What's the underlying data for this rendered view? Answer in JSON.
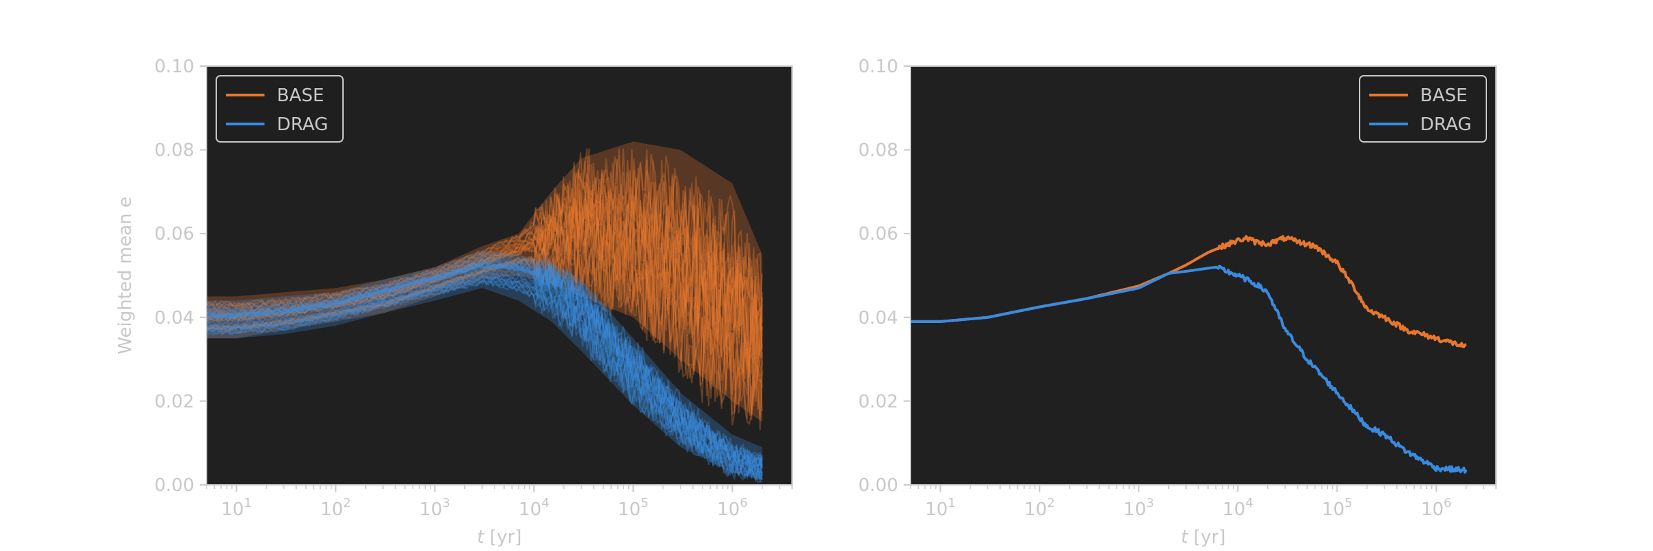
{
  "colors": {
    "base": "#e8772e",
    "drag": "#3a8be0",
    "axes_bg": "#202020",
    "text": "#c8c8c8",
    "spine": "#c8c8c8"
  },
  "chart_data": [
    {
      "type": "line",
      "variant": "ensemble",
      "title": "",
      "xlabel_italic": "t",
      "xlabel_unit": " [yr]",
      "ylabel": "Weighted mean e",
      "xscale": "log",
      "xlim": [
        5,
        4000000
      ],
      "ylim": [
        0,
        0.1
      ],
      "yticks": [
        "0.00",
        "0.02",
        "0.04",
        "0.06",
        "0.08",
        "0.10"
      ],
      "xticks": [
        {
          "base": "10",
          "exp": "1"
        },
        {
          "base": "10",
          "exp": "2"
        },
        {
          "base": "10",
          "exp": "3"
        },
        {
          "base": "10",
          "exp": "4"
        },
        {
          "base": "10",
          "exp": "5"
        },
        {
          "base": "10",
          "exp": "6"
        }
      ],
      "legend_position": "upper-left",
      "grid": false,
      "series": [
        {
          "name": "BASE",
          "color_key": "base",
          "x": [
            5,
            10,
            30,
            100,
            300,
            1000,
            3000,
            7000,
            15000,
            30000,
            100000,
            300000,
            1000000,
            2000000
          ],
          "y": [
            0.04,
            0.04,
            0.041,
            0.043,
            0.045,
            0.049,
            0.053,
            0.056,
            0.059,
            0.062,
            0.058,
            0.05,
            0.04,
            0.033
          ],
          "band_lo": [
            0.035,
            0.035,
            0.037,
            0.039,
            0.041,
            0.045,
            0.049,
            0.05,
            0.048,
            0.045,
            0.04,
            0.03,
            0.02,
            0.015
          ],
          "band_hi": [
            0.045,
            0.045,
            0.046,
            0.047,
            0.049,
            0.052,
            0.057,
            0.06,
            0.07,
            0.078,
            0.082,
            0.08,
            0.072,
            0.055
          ]
        },
        {
          "name": "DRAG",
          "color_key": "drag",
          "x": [
            5,
            10,
            30,
            100,
            300,
            1000,
            3000,
            7000,
            15000,
            30000,
            100000,
            300000,
            1000000,
            2000000
          ],
          "y": [
            0.039,
            0.039,
            0.04,
            0.042,
            0.045,
            0.048,
            0.051,
            0.05,
            0.047,
            0.041,
            0.027,
            0.015,
            0.006,
            0.004
          ],
          "band_lo": [
            0.035,
            0.035,
            0.036,
            0.038,
            0.041,
            0.044,
            0.047,
            0.044,
            0.039,
            0.032,
            0.019,
            0.009,
            0.003,
            0.001
          ],
          "band_hi": [
            0.044,
            0.044,
            0.045,
            0.046,
            0.049,
            0.052,
            0.056,
            0.055,
            0.053,
            0.049,
            0.035,
            0.022,
            0.012,
            0.009
          ]
        }
      ]
    },
    {
      "type": "line",
      "variant": "mean",
      "title": "",
      "xlabel_italic": "t",
      "xlabel_unit": " [yr]",
      "ylabel": "",
      "xscale": "log",
      "xlim": [
        5,
        4000000
      ],
      "ylim": [
        0,
        0.1
      ],
      "yticks": [
        "0.00",
        "0.02",
        "0.04",
        "0.06",
        "0.08",
        "0.10"
      ],
      "xticks": [
        {
          "base": "10",
          "exp": "1"
        },
        {
          "base": "10",
          "exp": "2"
        },
        {
          "base": "10",
          "exp": "3"
        },
        {
          "base": "10",
          "exp": "4"
        },
        {
          "base": "10",
          "exp": "5"
        },
        {
          "base": "10",
          "exp": "6"
        }
      ],
      "legend_position": "upper-right",
      "grid": false,
      "series": [
        {
          "name": "BASE",
          "color_key": "base",
          "x": [
            5,
            10,
            30,
            100,
            300,
            1000,
            2000,
            3000,
            5000,
            8000,
            12000,
            15000,
            20000,
            30000,
            40000,
            60000,
            100000,
            150000,
            200000,
            300000,
            500000,
            1000000,
            2000000
          ],
          "y": [
            0.039,
            0.039,
            0.04,
            0.0425,
            0.0445,
            0.0475,
            0.0505,
            0.0525,
            0.0555,
            0.0575,
            0.059,
            0.058,
            0.0575,
            0.059,
            0.058,
            0.057,
            0.053,
            0.047,
            0.042,
            0.04,
            0.037,
            0.035,
            0.033
          ]
        },
        {
          "name": "DRAG",
          "color_key": "drag",
          "x": [
            5,
            10,
            30,
            100,
            300,
            1000,
            2000,
            3000,
            6000,
            10000,
            15000,
            20000,
            30000,
            50000,
            100000,
            200000,
            300000,
            500000,
            1000000,
            2000000
          ],
          "y": [
            0.039,
            0.039,
            0.04,
            0.0425,
            0.0445,
            0.047,
            0.0505,
            0.051,
            0.052,
            0.05,
            0.048,
            0.046,
            0.037,
            0.03,
            0.022,
            0.014,
            0.012,
            0.008,
            0.004,
            0.0035
          ]
        }
      ]
    }
  ]
}
